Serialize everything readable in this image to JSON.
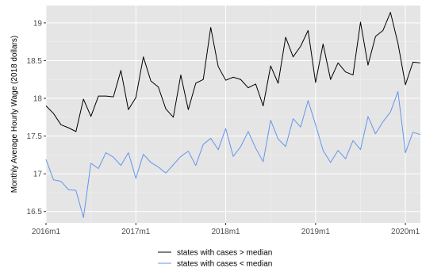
{
  "chart_data": {
    "type": "line",
    "ylabel": "Monthly Average Hourly Wage (2018 dollars)",
    "xlabel": "",
    "x_start": "2016m1",
    "x_ticks": [
      "2016m1",
      "2017m1",
      "2018m1",
      "2019m1",
      "2020m1"
    ],
    "x_tick_positions": [
      0,
      12,
      24,
      36,
      48
    ],
    "xlim": [
      0,
      50
    ],
    "y_ticks": [
      "16.5",
      "17",
      "17.5",
      "18",
      "18.5",
      "19"
    ],
    "y_tick_values": [
      16.5,
      17,
      17.5,
      18,
      18.5,
      19
    ],
    "ylim": [
      16.35,
      19.23
    ],
    "grid": true,
    "legend_position": "bottom",
    "series": [
      {
        "name": "states with cases > median",
        "color": "#000000",
        "values": [
          17.9,
          17.8,
          17.65,
          17.61,
          17.56,
          17.99,
          17.76,
          18.03,
          18.03,
          18.02,
          18.37,
          17.85,
          18.01,
          18.55,
          18.23,
          18.15,
          17.86,
          17.75,
          18.31,
          17.85,
          18.2,
          18.25,
          18.94,
          18.42,
          18.24,
          18.28,
          18.25,
          18.14,
          18.19,
          17.9,
          18.43,
          18.2,
          18.81,
          18.55,
          18.69,
          18.9,
          18.21,
          18.72,
          18.25,
          18.47,
          18.35,
          18.31,
          19.01,
          18.44,
          18.82,
          18.9,
          19.14,
          18.73,
          18.18,
          18.48,
          18.47
        ]
      },
      {
        "name": "states with cases < median",
        "color": "#6495ed",
        "values": [
          17.19,
          16.92,
          16.9,
          16.79,
          16.78,
          16.42,
          17.14,
          17.07,
          17.28,
          17.22,
          17.11,
          17.28,
          16.94,
          17.26,
          17.15,
          17.09,
          17.01,
          17.12,
          17.23,
          17.3,
          17.11,
          17.39,
          17.47,
          17.32,
          17.6,
          17.23,
          17.36,
          17.56,
          17.34,
          17.16,
          17.71,
          17.46,
          17.36,
          17.73,
          17.62,
          17.97,
          17.65,
          17.31,
          17.15,
          17.31,
          17.2,
          17.44,
          17.32,
          17.76,
          17.53,
          17.69,
          17.82,
          18.09,
          17.28,
          17.55,
          17.52
        ]
      }
    ]
  }
}
